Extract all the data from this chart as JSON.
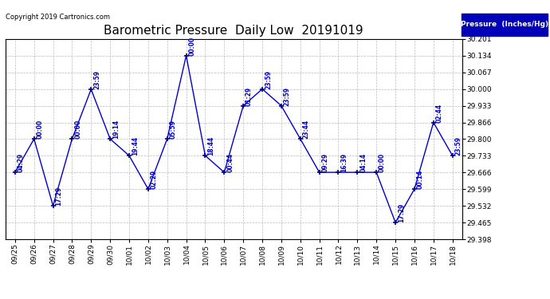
{
  "title": "Barometric Pressure  Daily Low  20191019",
  "copyright": "Copyright 2019 Cartronics.com",
  "legend_label": "Pressure  (Inches/Hg)",
  "x_labels": [
    "09/25",
    "09/26",
    "09/27",
    "09/28",
    "09/29",
    "09/30",
    "10/01",
    "10/02",
    "10/03",
    "10/04",
    "10/05",
    "10/06",
    "10/07",
    "10/08",
    "10/09",
    "10/10",
    "10/11",
    "10/12",
    "10/13",
    "10/14",
    "10/15",
    "10/16",
    "10/17",
    "10/18"
  ],
  "y_values": [
    29.666,
    29.8,
    29.532,
    29.8,
    29.999,
    29.8,
    29.733,
    29.599,
    29.8,
    30.134,
    29.733,
    29.666,
    29.933,
    30.0,
    29.933,
    29.8,
    29.666,
    29.666,
    29.666,
    29.666,
    29.465,
    29.599,
    29.866,
    29.733
  ],
  "time_labels": [
    "04:29",
    "00:00",
    "17:29",
    "00:00",
    "23:59",
    "19:14",
    "19:44",
    "02:29",
    "05:59",
    "00:00",
    "18:44",
    "00:44",
    "01:29",
    "23:59",
    "23:59",
    "23:44",
    "09:29",
    "16:39",
    "04:14",
    "00:00",
    "17:29",
    "00:14",
    "02:44",
    "23:59"
  ],
  "line_color": "#0000cc",
  "marker_color": "#000080",
  "background_color": "#ffffff",
  "grid_color": "#bbbbbb",
  "title_color": "#000000",
  "copyright_color": "#000000",
  "label_color": "#0000cc",
  "legend_bg": "#0000bb",
  "legend_text": "#ffffff",
  "y_min": 29.398,
  "y_max": 30.201,
  "y_ticks": [
    29.398,
    29.465,
    29.532,
    29.599,
    29.666,
    29.733,
    29.8,
    29.866,
    29.933,
    30.0,
    30.067,
    30.134,
    30.201
  ],
  "figwidth": 6.9,
  "figheight": 3.75,
  "dpi": 100
}
